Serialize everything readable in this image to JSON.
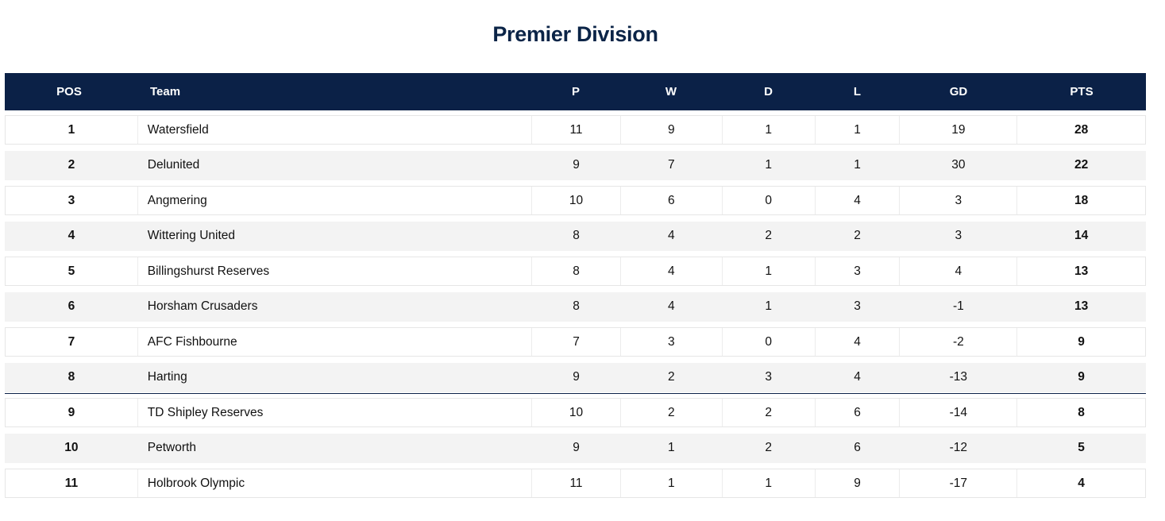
{
  "page": {
    "title": "Premier Division"
  },
  "table": {
    "headers": {
      "pos": "POS",
      "team": "Team",
      "p": "P",
      "w": "W",
      "d": "D",
      "l": "L",
      "gd": "GD",
      "pts": "PTS"
    },
    "rows": [
      {
        "pos": "1",
        "team": "Watersfield",
        "p": "11",
        "w": "9",
        "d": "1",
        "l": "1",
        "gd": "19",
        "pts": "28"
      },
      {
        "pos": "2",
        "team": "Delunited",
        "p": "9",
        "w": "7",
        "d": "1",
        "l": "1",
        "gd": "30",
        "pts": "22"
      },
      {
        "pos": "3",
        "team": "Angmering",
        "p": "10",
        "w": "6",
        "d": "0",
        "l": "4",
        "gd": "3",
        "pts": "18"
      },
      {
        "pos": "4",
        "team": "Wittering United",
        "p": "8",
        "w": "4",
        "d": "2",
        "l": "2",
        "gd": "3",
        "pts": "14"
      },
      {
        "pos": "5",
        "team": "Billingshurst Reserves",
        "p": "8",
        "w": "4",
        "d": "1",
        "l": "3",
        "gd": "4",
        "pts": "13"
      },
      {
        "pos": "6",
        "team": "Horsham Crusaders",
        "p": "8",
        "w": "4",
        "d": "1",
        "l": "3",
        "gd": "-1",
        "pts": "13"
      },
      {
        "pos": "7",
        "team": "AFC Fishbourne",
        "p": "7",
        "w": "3",
        "d": "0",
        "l": "4",
        "gd": "-2",
        "pts": "9"
      },
      {
        "pos": "8",
        "team": "Harting",
        "p": "9",
        "w": "2",
        "d": "3",
        "l": "4",
        "gd": "-13",
        "pts": "9"
      },
      {
        "pos": "9",
        "team": "TD Shipley Reserves",
        "p": "10",
        "w": "2",
        "d": "2",
        "l": "6",
        "gd": "-14",
        "pts": "8"
      },
      {
        "pos": "10",
        "team": "Petworth",
        "p": "9",
        "w": "1",
        "d": "2",
        "l": "6",
        "gd": "-12",
        "pts": "5"
      },
      {
        "pos": "11",
        "team": "Holbrook Olympic",
        "p": "11",
        "w": "1",
        "d": "1",
        "l": "9",
        "gd": "-17",
        "pts": "4"
      }
    ]
  },
  "colors": {
    "header_bg": "#0b2147",
    "title": "#0b2447",
    "alt_row": "#f3f3f3"
  }
}
